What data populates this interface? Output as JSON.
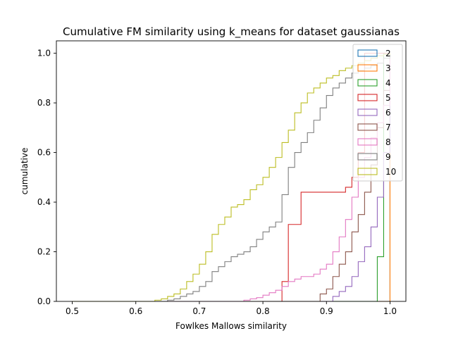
{
  "chart_data": {
    "type": "line",
    "title": "Cumulative FM similarity using k_means for dataset gaussianas",
    "xlabel": "Fowlkes Mallows similarity",
    "ylabel": "cumulative",
    "xlim": [
      0.475,
      1.025
    ],
    "ylim": [
      0,
      1.05
    ],
    "xticks": [
      0.5,
      0.6,
      0.7,
      0.8,
      0.9,
      1.0
    ],
    "xtick_labels": [
      "0.5",
      "0.6",
      "0.7",
      "0.8",
      "0.9",
      "1.0"
    ],
    "yticks": [
      0,
      0.2,
      0.4,
      0.6,
      0.8,
      1.0
    ],
    "ytick_labels": [
      "0.0",
      "0.2",
      "0.4",
      "0.6",
      "0.8",
      "1.0"
    ],
    "grid": false,
    "legend_position": "top-right",
    "series": [
      {
        "name": "2",
        "color": "#1f77b4",
        "x": [
          0.5,
          1.0,
          1.0
        ],
        "y": [
          0,
          0,
          1.0
        ]
      },
      {
        "name": "3",
        "color": "#ff7f0e",
        "x": [
          0.5,
          1.0,
          1.0
        ],
        "y": [
          0,
          0,
          1.0
        ]
      },
      {
        "name": "4",
        "color": "#2ca02c",
        "x": [
          0.5,
          0.98,
          0.98,
          0.99,
          0.99,
          1.0
        ],
        "y": [
          0,
          0,
          0.18,
          0.18,
          1.0,
          1.0
        ]
      },
      {
        "name": "5",
        "color": "#d62728",
        "x": [
          0.5,
          0.83,
          0.83,
          0.84,
          0.84,
          0.85,
          0.85,
          0.86,
          0.86,
          0.93,
          0.93,
          0.94,
          0.94,
          0.95,
          0.95,
          0.96,
          0.96,
          1.0
        ],
        "y": [
          0,
          0,
          0.08,
          0.08,
          0.31,
          0.31,
          0.31,
          0.31,
          0.44,
          0.44,
          0.46,
          0.46,
          0.5,
          0.5,
          0.6,
          0.6,
          1.0,
          1.0
        ]
      },
      {
        "name": "6",
        "color": "#9467bd",
        "x": [
          0.5,
          0.9,
          0.91,
          0.92,
          0.93,
          0.94,
          0.95,
          0.96,
          0.97,
          0.98,
          0.99,
          1.0
        ],
        "y": [
          0,
          0,
          0.02,
          0.04,
          0.06,
          0.1,
          0.16,
          0.22,
          0.3,
          0.42,
          0.6,
          1.0
        ]
      },
      {
        "name": "7",
        "color": "#8c564b",
        "x": [
          0.5,
          0.88,
          0.89,
          0.9,
          0.91,
          0.92,
          0.93,
          0.94,
          0.95,
          0.96,
          0.97,
          0.98,
          0.99,
          1.0
        ],
        "y": [
          0,
          0,
          0.03,
          0.05,
          0.1,
          0.15,
          0.2,
          0.28,
          0.35,
          0.44,
          0.55,
          0.7,
          0.85,
          1.0
        ]
      },
      {
        "name": "8",
        "color": "#e377c2",
        "x": [
          0.5,
          0.77,
          0.78,
          0.79,
          0.8,
          0.81,
          0.82,
          0.83,
          0.84,
          0.85,
          0.86,
          0.87,
          0.88,
          0.89,
          0.9,
          0.91,
          0.92,
          0.93,
          0.94,
          0.95,
          0.96,
          0.97,
          0.98,
          0.99,
          1.0
        ],
        "y": [
          0,
          0.005,
          0.01,
          0.015,
          0.025,
          0.035,
          0.045,
          0.06,
          0.08,
          0.09,
          0.1,
          0.1,
          0.11,
          0.13,
          0.15,
          0.2,
          0.26,
          0.33,
          0.42,
          0.5,
          0.58,
          0.66,
          0.72,
          0.79,
          1.0
        ]
      },
      {
        "name": "9",
        "color": "#7f7f7f",
        "x": [
          0.5,
          0.65,
          0.66,
          0.67,
          0.68,
          0.69,
          0.7,
          0.71,
          0.72,
          0.73,
          0.74,
          0.75,
          0.76,
          0.77,
          0.78,
          0.79,
          0.8,
          0.81,
          0.82,
          0.83,
          0.84,
          0.85,
          0.86,
          0.87,
          0.88,
          0.89,
          0.9,
          0.91,
          0.92,
          0.93,
          0.94,
          0.95,
          0.96,
          0.97,
          0.98,
          0.99,
          1.0
        ],
        "y": [
          0,
          0.005,
          0.01,
          0.02,
          0.03,
          0.04,
          0.06,
          0.08,
          0.12,
          0.14,
          0.16,
          0.18,
          0.19,
          0.2,
          0.22,
          0.25,
          0.28,
          0.3,
          0.32,
          0.43,
          0.54,
          0.6,
          0.64,
          0.68,
          0.73,
          0.78,
          0.83,
          0.86,
          0.88,
          0.9,
          0.92,
          0.93,
          0.94,
          0.95,
          0.96,
          0.98,
          1.0
        ]
      },
      {
        "name": "10",
        "color": "#bcbd22",
        "x": [
          0.5,
          0.63,
          0.64,
          0.65,
          0.66,
          0.67,
          0.68,
          0.69,
          0.7,
          0.71,
          0.72,
          0.73,
          0.74,
          0.75,
          0.76,
          0.77,
          0.78,
          0.79,
          0.8,
          0.81,
          0.82,
          0.83,
          0.84,
          0.85,
          0.86,
          0.87,
          0.88,
          0.89,
          0.9,
          0.91,
          0.92,
          0.93,
          0.94,
          0.95,
          0.96,
          0.97,
          0.98,
          0.99,
          1.0
        ],
        "y": [
          0,
          0.005,
          0.01,
          0.02,
          0.03,
          0.05,
          0.08,
          0.11,
          0.15,
          0.2,
          0.27,
          0.31,
          0.34,
          0.38,
          0.39,
          0.41,
          0.45,
          0.47,
          0.5,
          0.54,
          0.58,
          0.64,
          0.69,
          0.76,
          0.8,
          0.84,
          0.86,
          0.88,
          0.9,
          0.91,
          0.93,
          0.94,
          0.95,
          0.96,
          0.97,
          0.98,
          0.99,
          0.995,
          1.0
        ]
      }
    ]
  }
}
